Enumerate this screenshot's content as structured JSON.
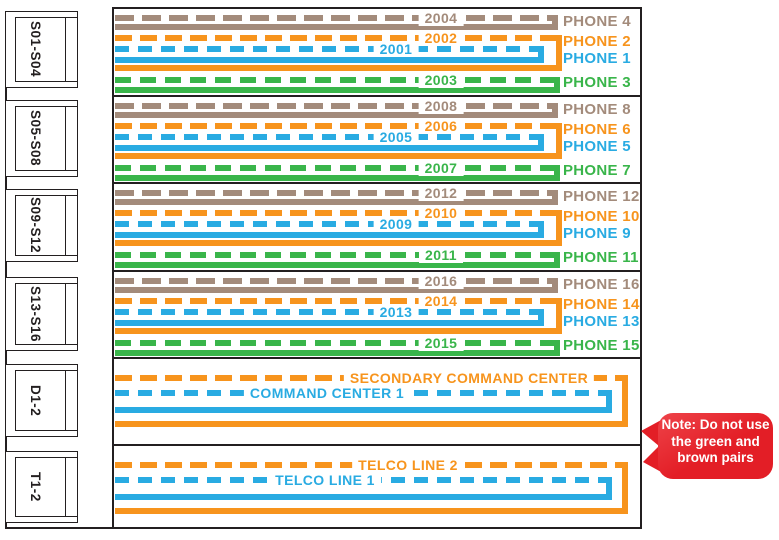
{
  "colors": {
    "brown": "#A38B7B",
    "orange": "#F7941D",
    "blue": "#29ABE2",
    "green": "#39B54A",
    "red": "#E31E26",
    "red_light": "#EE4349",
    "ink": "#231F20"
  },
  "left_modules": [
    {
      "label": "S01-S04"
    },
    {
      "label": "S05-S08"
    },
    {
      "label": "S09-S12"
    },
    {
      "label": "S13-S16"
    },
    {
      "label": "D1-2"
    },
    {
      "label": "T1-2"
    }
  ],
  "sections": [
    {
      "wires": [
        {
          "color": "brown",
          "label": "2004",
          "phone": "PHONE 4"
        },
        {
          "color": "orange",
          "label": "2002",
          "phone": "PHONE 2"
        },
        {
          "color": "blue",
          "label": "2001",
          "phone": "PHONE 1"
        },
        {
          "color": "green",
          "label": "2003",
          "phone": "PHONE 3"
        }
      ]
    },
    {
      "wires": [
        {
          "color": "brown",
          "label": "2008",
          "phone": "PHONE 8"
        },
        {
          "color": "orange",
          "label": "2006",
          "phone": "PHONE 6"
        },
        {
          "color": "blue",
          "label": "2005",
          "phone": "PHONE 5"
        },
        {
          "color": "green",
          "label": "2007",
          "phone": "PHONE 7"
        }
      ]
    },
    {
      "wires": [
        {
          "color": "brown",
          "label": "2012",
          "phone": "PHONE 12"
        },
        {
          "color": "orange",
          "label": "2010",
          "phone": "PHONE 10"
        },
        {
          "color": "blue",
          "label": "2009",
          "phone": "PHONE 9"
        },
        {
          "color": "green",
          "label": "2011",
          "phone": "PHONE 11"
        }
      ]
    },
    {
      "wires": [
        {
          "color": "brown",
          "label": "2016",
          "phone": "PHONE 16"
        },
        {
          "color": "orange",
          "label": "2014",
          "phone": "PHONE 14"
        },
        {
          "color": "blue",
          "label": "2013",
          "phone": "PHONE 13"
        },
        {
          "color": "green",
          "label": "2015",
          "phone": "PHONE 15"
        }
      ]
    },
    {
      "wires": [
        {
          "color": "orange",
          "label": "SECONDARY COMMAND CENTER"
        },
        {
          "color": "blue",
          "label": "COMMAND CENTER 1"
        }
      ]
    },
    {
      "wires": [
        {
          "color": "orange",
          "label": "TELCO LINE 2"
        },
        {
          "color": "blue",
          "label": "TELCO LINE 1"
        }
      ]
    }
  ],
  "note": {
    "lines": [
      "Note: Do not use",
      "the green and",
      "brown pairs"
    ]
  }
}
